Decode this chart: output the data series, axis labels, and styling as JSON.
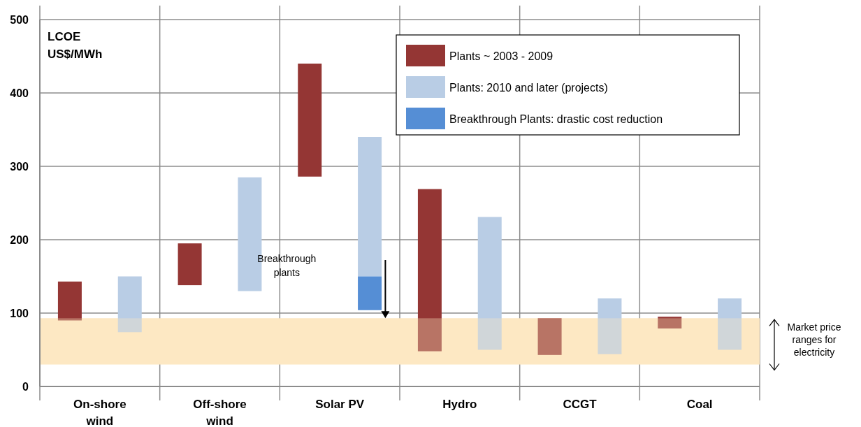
{
  "chart_data": {
    "type": "bar",
    "ylabel": "LCOE US$/MWh",
    "categories": [
      "On-shore wind",
      "Off-shore wind",
      "Solar PV",
      "Hydro",
      "CCGT",
      "Coal"
    ],
    "series": [
      {
        "name": "Plants ~ 2003 - 2009",
        "color": "#943634",
        "base": [
          90,
          138,
          286,
          48,
          43,
          79
        ],
        "values": [
          53,
          57,
          154,
          221,
          50,
          16
        ]
      },
      {
        "name": "Plants: 2010 and later (projects)",
        "color": "#b9cde5",
        "base": [
          74,
          130,
          150,
          50,
          44,
          50
        ],
        "values": [
          76,
          155,
          190,
          181,
          76,
          70
        ]
      },
      {
        "name": "Breakthrough Plants: drastic cost reduction",
        "color": "#558ed5",
        "base": [
          null,
          null,
          104,
          null,
          null,
          null
        ],
        "values": [
          null,
          null,
          46,
          null,
          null,
          null
        ]
      }
    ],
    "ylim": [
      0,
      500
    ],
    "yticks": [
      0,
      100,
      200,
      300,
      400,
      500
    ],
    "grid": true,
    "legend": "top right",
    "bands": [
      {
        "axis": "y",
        "from": 30,
        "to": 93,
        "label": "Market price ranges for electricity",
        "color": "#fde9c4"
      }
    ],
    "annotations": [
      "Breakthrough plants"
    ]
  }
}
